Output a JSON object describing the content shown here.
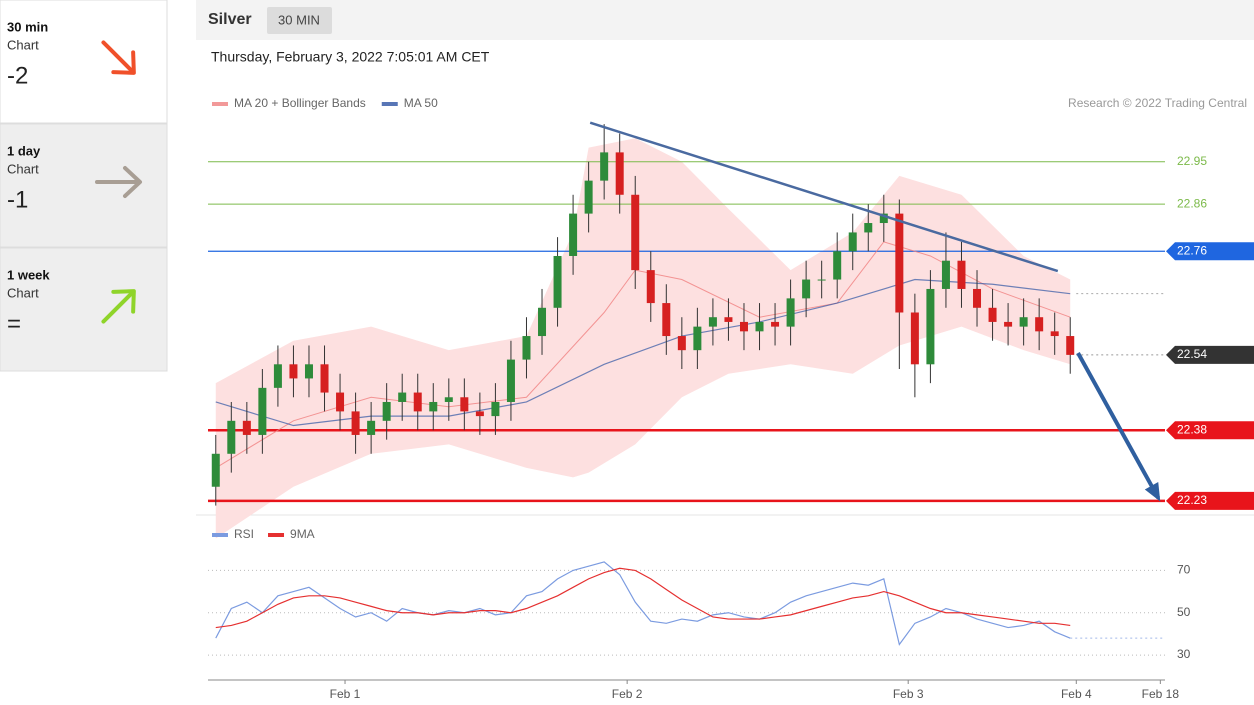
{
  "sidebar": [
    {
      "period": "30 min",
      "label": "Chart",
      "score": "-2",
      "direction": "down-right",
      "arrow_color": "#f0502a",
      "background": "#ffffff"
    },
    {
      "period": "1 day",
      "label": "Chart",
      "score": "-1",
      "direction": "right",
      "arrow_color": "#a89e94",
      "background": "#eeeeee"
    },
    {
      "period": "1 week",
      "label": "Chart",
      "score": "=",
      "direction": "up-right",
      "arrow_color": "#8fd42a",
      "background": "#eeeeee"
    }
  ],
  "header": {
    "instrument": "Silver",
    "timeframe": "30 MIN",
    "timestamp": "Thursday, February 3, 2022 7:05:01 AM CET",
    "credit": "Research © 2022 Trading Central"
  },
  "chart_data": [
    {
      "type": "candlestick",
      "up_color": "#2e8b3a",
      "down_color": "#d62020",
      "xlim": [
        -0.5,
        61.1
      ],
      "xticks": [
        {
          "value": 8.32,
          "label": "Feb 1"
        },
        {
          "value": 26.48,
          "label": "Feb 2"
        },
        {
          "value": 44.57,
          "label": "Feb 3"
        },
        {
          "value": 55.39,
          "label": "Feb 4"
        },
        {
          "value": 60.8,
          "label": "Feb 18"
        }
      ],
      "ylim": [
        22.2,
        23.06
      ],
      "open": [
        22.26,
        22.33,
        22.4,
        22.37,
        22.47,
        22.52,
        22.49,
        22.52,
        22.46,
        22.42,
        22.37,
        22.4,
        22.44,
        22.46,
        22.42,
        22.44,
        22.45,
        22.42,
        22.41,
        22.44,
        22.53,
        22.58,
        22.64,
        22.75,
        22.84,
        22.91,
        22.97,
        22.88,
        22.72,
        22.65,
        22.58,
        22.55,
        22.6,
        22.62,
        22.61,
        22.59,
        22.61,
        22.6,
        22.66,
        22.7,
        22.7,
        22.76,
        22.8,
        22.82,
        22.84,
        22.63,
        22.52,
        22.68,
        22.74,
        22.68,
        22.64,
        22.61,
        22.6,
        22.62,
        22.59,
        22.58
      ],
      "high": [
        22.37,
        22.44,
        22.44,
        22.51,
        22.56,
        22.56,
        22.56,
        22.56,
        22.5,
        22.46,
        22.44,
        22.48,
        22.5,
        22.5,
        22.48,
        22.49,
        22.49,
        22.46,
        22.48,
        22.57,
        22.62,
        22.68,
        22.79,
        22.88,
        22.95,
        23.03,
        23.01,
        22.92,
        22.76,
        22.69,
        22.62,
        22.64,
        22.66,
        22.66,
        22.65,
        22.65,
        22.65,
        22.7,
        22.74,
        22.74,
        22.8,
        22.84,
        22.86,
        22.88,
        22.87,
        22.67,
        22.72,
        22.8,
        22.78,
        22.72,
        22.68,
        22.65,
        22.66,
        22.66,
        22.63,
        22.62
      ],
      "low": [
        22.22,
        22.29,
        22.33,
        22.33,
        22.43,
        22.45,
        22.45,
        22.42,
        22.38,
        22.33,
        22.33,
        22.36,
        22.4,
        22.38,
        22.38,
        22.4,
        22.38,
        22.37,
        22.37,
        22.4,
        22.49,
        22.54,
        22.6,
        22.71,
        22.8,
        22.87,
        22.84,
        22.68,
        22.61,
        22.54,
        22.51,
        22.51,
        22.56,
        22.57,
        22.55,
        22.55,
        22.56,
        22.56,
        22.62,
        22.66,
        22.66,
        22.72,
        22.76,
        22.78,
        22.51,
        22.45,
        22.48,
        22.64,
        22.64,
        22.6,
        22.57,
        22.56,
        22.56,
        22.55,
        22.54,
        22.5
      ],
      "close": [
        22.33,
        22.4,
        22.37,
        22.47,
        22.52,
        22.49,
        22.52,
        22.46,
        22.42,
        22.37,
        22.4,
        22.44,
        22.46,
        22.42,
        22.44,
        22.45,
        22.42,
        22.41,
        22.44,
        22.53,
        22.58,
        22.64,
        22.75,
        22.84,
        22.91,
        22.97,
        22.88,
        22.72,
        22.65,
        22.58,
        22.55,
        22.6,
        22.62,
        22.61,
        22.59,
        22.61,
        22.6,
        22.66,
        22.7,
        22.7,
        22.76,
        22.8,
        22.82,
        22.84,
        22.63,
        22.52,
        22.68,
        22.74,
        22.68,
        22.64,
        22.61,
        22.6,
        22.62,
        22.59,
        22.58,
        22.54
      ],
      "series": [
        {
          "name": "MA 20 + Bollinger Bands",
          "color": "#f08080",
          "band_color": "#fde0e0",
          "x": [
            0,
            5,
            10,
            15,
            20,
            25,
            27,
            30,
            35,
            40,
            43,
            46,
            50,
            55
          ],
          "values": [
            22.3,
            22.4,
            22.45,
            22.43,
            22.45,
            22.63,
            22.72,
            22.7,
            22.62,
            22.65,
            22.78,
            22.75,
            22.68,
            22.62
          ],
          "band": {
            "x": [
              0,
              5,
              10,
              15,
              20,
              23,
              24,
              27,
              30,
              33,
              37,
              41,
              44,
              48,
              52,
              55
            ],
            "upper": [
              22.48,
              22.57,
              22.6,
              22.55,
              22.58,
              22.8,
              22.98,
              23.0,
              22.95,
              22.85,
              22.72,
              22.8,
              22.92,
              22.88,
              22.75,
              22.7
            ],
            "lower": [
              22.15,
              22.26,
              22.33,
              22.35,
              22.3,
              22.28,
              22.29,
              22.35,
              22.45,
              22.5,
              22.52,
              22.5,
              22.56,
              22.6,
              22.55,
              22.52
            ]
          }
        },
        {
          "name": "MA 50",
          "color": "#2f55a4",
          "x": [
            0,
            5,
            10,
            15,
            20,
            25,
            30,
            35,
            40,
            45,
            50,
            55
          ],
          "values": [
            22.44,
            22.39,
            22.41,
            22.41,
            22.44,
            22.52,
            22.58,
            22.61,
            22.65,
            22.7,
            22.69,
            22.67
          ]
        }
      ],
      "annotations": [
        {
          "kind": "line",
          "color": "#4a6aa0",
          "x": [
            24.1,
            54.2
          ],
          "values": [
            23.033,
            22.718
          ]
        },
        {
          "kind": "arrow",
          "color": "#2f5f9f",
          "x": [
            55.5,
            60.67
          ],
          "values": [
            22.544,
            22.236
          ]
        }
      ],
      "levels": [
        {
          "value": 22.95,
          "color": "#7cba4a",
          "line": "solid",
          "width": 1,
          "tag": false,
          "from_start": true
        },
        {
          "value": 22.86,
          "color": "#7cba4a",
          "line": "solid",
          "width": 1,
          "tag": false,
          "from_start": true
        },
        {
          "value": 22.76,
          "color": "#1f66e0",
          "line": "solid",
          "width": 1.2,
          "tag": true,
          "from_start": true
        },
        {
          "value": 22.54,
          "color": "#333333",
          "line": "dotted",
          "width": 1,
          "tag": true,
          "from_start": false
        },
        {
          "value": 22.38,
          "color": "#e8141b",
          "line": "solid",
          "width": 2.5,
          "tag": true,
          "from_start": true
        },
        {
          "value": 22.23,
          "color": "#e8141b",
          "line": "solid",
          "width": 2.5,
          "tag": true,
          "from_start": true
        }
      ]
    },
    {
      "type": "line",
      "ylim": [
        22,
        82
      ],
      "yticks": [
        30,
        50,
        70
      ],
      "grid": true,
      "series": [
        {
          "name": "RSI",
          "color": "#7b9be0",
          "values": [
            38,
            52,
            55,
            50,
            58,
            60,
            62,
            57,
            52,
            48,
            50,
            46,
            52,
            50,
            49,
            51,
            50,
            52,
            49,
            50,
            58,
            60,
            66,
            70,
            72,
            74,
            68,
            55,
            46,
            45,
            47,
            46,
            49,
            50,
            48,
            47,
            50,
            55,
            58,
            60,
            62,
            64,
            63,
            66,
            35,
            45,
            48,
            52,
            50,
            47,
            45,
            43,
            44,
            46,
            41,
            38
          ]
        },
        {
          "name": "9MA",
          "color": "#e53030",
          "values": [
            43,
            44,
            46,
            50,
            54,
            57,
            58,
            58,
            57,
            55,
            53,
            51,
            50,
            50,
            49,
            50,
            50,
            51,
            51,
            50,
            52,
            55,
            58,
            62,
            66,
            69,
            71,
            70,
            66,
            61,
            56,
            52,
            48,
            47,
            47,
            47,
            48,
            49,
            51,
            53,
            55,
            57,
            58,
            60,
            58,
            55,
            52,
            50,
            50,
            49,
            48,
            47,
            46,
            45,
            45,
            44
          ]
        }
      ]
    }
  ]
}
